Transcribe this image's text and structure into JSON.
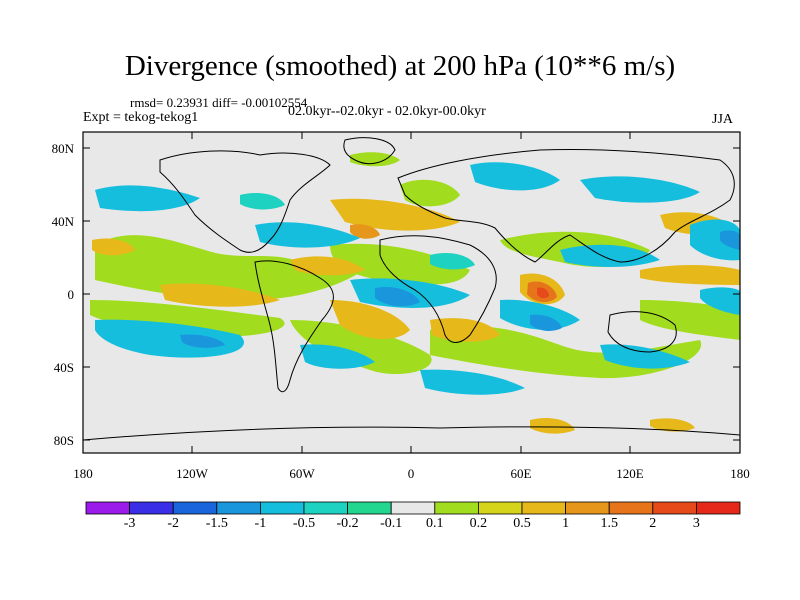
{
  "title": "Divergence (smoothed) at 200 hPa (10**6 m/s)",
  "stats": "rmsd= 0.23931 diff= -0.00102554",
  "experiment": "Expt = tekog-tekog1",
  "period": "02.0kyr--02.0kyr - 02.0kyr-00.0kyr",
  "season": "JJA",
  "lat_labels": [
    "80N",
    "40N",
    "0",
    "40S",
    "80S"
  ],
  "lon_labels": [
    "180",
    "120W",
    "60W",
    "0",
    "60E",
    "120E",
    "180"
  ],
  "colorbar": {
    "colors": [
      "#9a1bea",
      "#3a2fe6",
      "#1a64dc",
      "#1a96dc",
      "#16bede",
      "#1ed2c2",
      "#22d690",
      "#e8e8e8",
      "#a2dc1e",
      "#d6d41a",
      "#e6b81a",
      "#e6961a",
      "#e6741a",
      "#e64a1a",
      "#e6281a"
    ],
    "labels": [
      "-3",
      "-2",
      "-1.5",
      "-1",
      "-0.5",
      "-0.2",
      "-0.1",
      "0.1",
      "0.2",
      "0.5",
      "1",
      "1.5",
      "2",
      "3"
    ]
  },
  "map_background": "#e8e8e8"
}
